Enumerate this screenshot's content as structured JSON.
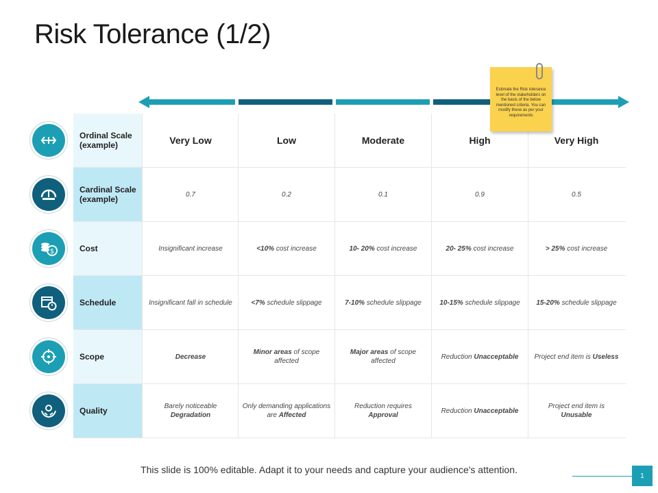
{
  "slide": {
    "title": "Risk Tolerance (1/2)",
    "footer": "This slide is 100% editable. Adapt it to your needs and capture your audience's attention.",
    "page_number": "1"
  },
  "note": {
    "text": "Estimate the Risk tolerance level of the stakeholders on the basis of the below mentioned criteria. You can modify these as per your requirements"
  },
  "colors": {
    "accent_teal": "#1c9fb4",
    "accent_dark": "#0f5f7d",
    "row_header_light": "#e8f7fc",
    "row_header_mid": "#bfe8f5",
    "note_yellow": "#fbd24e"
  },
  "table": {
    "rows": [
      {
        "label": "Ordinal Scale (example)",
        "icon": "arrows-horizontal-icon",
        "cells": [
          "Very Low",
          "Low",
          "Moderate",
          "High",
          "Very High"
        ]
      },
      {
        "label": "Cardinal Scale (example)",
        "icon": "gauge-icon",
        "cells": [
          "0.7",
          "0.2",
          "0.1",
          "0.9",
          "0.5"
        ]
      },
      {
        "label": "Cost",
        "icon": "coins-dollar-icon",
        "cells": [
          {
            "plain": "Insignificant increase"
          },
          {
            "bold": "<10%",
            "rest": "cost increase"
          },
          {
            "bold": "10- 20%",
            "rest": "cost increase"
          },
          {
            "bold": "20- 25%",
            "rest": "cost increase"
          },
          {
            "bold": "> 25%",
            "rest": "cost increase"
          }
        ]
      },
      {
        "label": "Schedule",
        "icon": "calendar-clock-icon",
        "cells": [
          {
            "plain": "Insignificant fall in schedule"
          },
          {
            "bold": "<7%",
            "rest": "schedule slippage"
          },
          {
            "bold": "7-10%",
            "rest": "schedule slippage"
          },
          {
            "bold": "10-15%",
            "rest": "schedule slippage"
          },
          {
            "bold": "15-20%",
            "rest": "schedule slippage"
          }
        ]
      },
      {
        "label": "Scope",
        "icon": "target-icon",
        "cells": [
          {
            "boldonly": "Decrease"
          },
          {
            "bold": "Minor areas",
            "rest": "of scope affected"
          },
          {
            "bold": "Major areas",
            "rest": "of scope affected"
          },
          {
            "pre": "Reduction",
            "bold": "Unacceptable"
          },
          {
            "pre": "Project end item is",
            "bold": "Useless"
          }
        ]
      },
      {
        "label": "Quality",
        "icon": "hands-gear-icon",
        "cells": [
          {
            "pre": "Barely noticeable",
            "bold": "Degradation"
          },
          {
            "pre": "Only demanding applications are",
            "bold": "Affected"
          },
          {
            "pre": "Reduction requires",
            "bold": "Approval"
          },
          {
            "pre": "Reduction",
            "bold": "Unacceptable"
          },
          {
            "pre": "Project end item is",
            "bold": "Unusable"
          }
        ]
      }
    ]
  }
}
